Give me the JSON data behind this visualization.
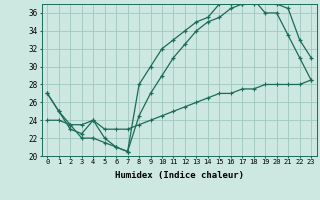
{
  "xlabel": "Humidex (Indice chaleur)",
  "bg_color": "#cde8e0",
  "grid_color": "#a0c8be",
  "line_color": "#1a6b5a",
  "xlim": [
    -0.5,
    23.5
  ],
  "ylim": [
    20,
    37
  ],
  "xtick_labels": [
    "0",
    "1",
    "2",
    "3",
    "4",
    "5",
    "6",
    "7",
    "8",
    "9",
    "10",
    "11",
    "12",
    "13",
    "14",
    "15",
    "16",
    "17",
    "18",
    "19",
    "20",
    "21",
    "22",
    "23"
  ],
  "ytick_values": [
    20,
    22,
    24,
    26,
    28,
    30,
    32,
    34,
    36
  ],
  "series1_x": [
    0,
    1,
    2,
    3,
    4,
    5,
    6,
    7,
    8,
    9,
    10,
    11,
    12,
    13,
    14,
    15,
    16,
    17,
    18,
    19,
    20,
    21,
    22,
    23
  ],
  "series1_y": [
    27,
    25,
    23,
    22.5,
    24,
    22,
    21,
    20.5,
    28,
    30,
    32,
    33,
    34,
    35,
    35.5,
    37,
    37,
    37,
    37.5,
    36,
    36,
    33.5,
    31,
    28.5
  ],
  "series2_x": [
    0,
    1,
    2,
    3,
    4,
    5,
    6,
    7,
    8,
    9,
    10,
    11,
    12,
    13,
    14,
    15,
    16,
    17,
    18,
    19,
    20,
    21,
    22,
    23
  ],
  "series2_y": [
    27,
    25,
    23.5,
    22,
    22,
    21.5,
    21,
    20.5,
    24.5,
    27,
    29,
    31,
    32.5,
    34,
    35,
    35.5,
    36.5,
    37,
    37,
    37.5,
    37,
    36.5,
    33,
    31
  ],
  "series3_x": [
    0,
    1,
    2,
    3,
    4,
    5,
    6,
    7,
    8,
    9,
    10,
    11,
    12,
    13,
    14,
    15,
    16,
    17,
    18,
    19,
    20,
    21,
    22,
    23
  ],
  "series3_y": [
    24,
    24,
    23.5,
    23.5,
    24,
    23,
    23,
    23,
    23.5,
    24,
    24.5,
    25,
    25.5,
    26,
    26.5,
    27,
    27,
    27.5,
    27.5,
    28,
    28,
    28,
    28,
    28.5
  ]
}
